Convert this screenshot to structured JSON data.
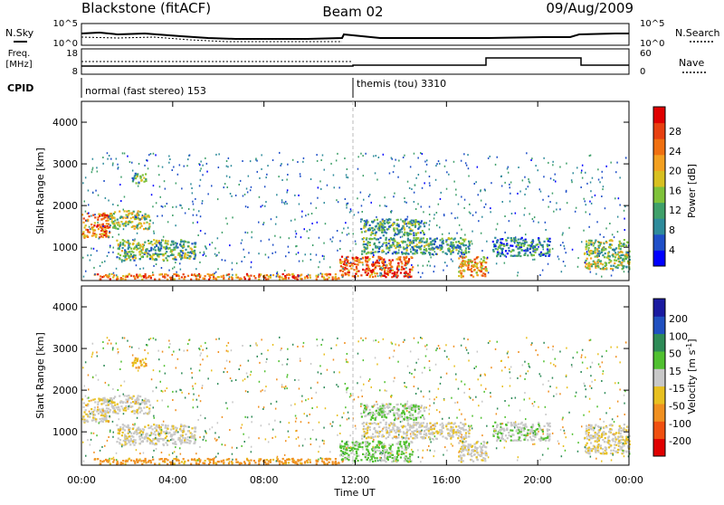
{
  "header": {
    "station": "Blackstone (fitACF)",
    "beam": "Beam 02",
    "date": "09/Aug/2009"
  },
  "noise_panel": {
    "left_label": "N.Sky",
    "right_label": "N.Search",
    "left_ticks": [
      "10^5",
      "10^0"
    ],
    "right_ticks": [
      "10^5",
      "10^0"
    ]
  },
  "freq_panel": {
    "left_label_line1": "Freq.",
    "left_label_line2": "[MHz]",
    "right_label": "Nave",
    "left_ticks": [
      "18",
      "8"
    ],
    "right_ticks": [
      "60",
      "0"
    ]
  },
  "cpid": {
    "label": "CPID",
    "modes": [
      {
        "name": "normal (fast stereo) 153",
        "start_h": 0
      },
      {
        "name": "themis (tou) 3310",
        "start_h": 12
      }
    ]
  },
  "axes": {
    "xlabel": "Time UT",
    "x_ticks": [
      "00:00",
      "04:00",
      "08:00",
      "12:00",
      "16:00",
      "20:00",
      "00:00"
    ],
    "ylabel": "Slant Range [km]",
    "y_ticks": [
      "1000",
      "2000",
      "3000",
      "4000"
    ]
  },
  "power_scale": {
    "title": "Power [dB]",
    "labels": [
      "28",
      "24",
      "20",
      "16",
      "12",
      "8",
      "4"
    ],
    "colors": [
      "#0000ff",
      "#1f4fc8",
      "#2e8b9b",
      "#3fa06a",
      "#7fc23a",
      "#d8c020",
      "#f3a020",
      "#f07010",
      "#e84010",
      "#e00000"
    ]
  },
  "velocity_scale": {
    "title": "Velocity [m s",
    "title_sup": "-1",
    "title_end": "]",
    "labels": [
      "200",
      "100",
      "50",
      "15",
      "-15",
      "-50",
      "-100",
      "-200"
    ],
    "colors": [
      "#1a1aa0",
      "#2050c0",
      "#2e8b57",
      "#50c030",
      "#c8c8c8",
      "#e8c020",
      "#f09020",
      "#f05010",
      "#e00000"
    ]
  },
  "chart_data": {
    "type": "heatmap",
    "title": "Blackstone (fitACF)",
    "xlabel": "Time UT",
    "ylabel": "Slant Range [km]",
    "xlim": [
      0,
      24
    ],
    "ylim": [
      200,
      4500
    ],
    "panels": [
      "Power [dB]",
      "Velocity [m s-1]"
    ],
    "power_range_db": [
      0,
      30
    ],
    "velocity_range": [
      -250,
      250
    ],
    "echo_regions": [
      {
        "t0": 0.0,
        "t1": 1.2,
        "r0": 1250,
        "r1": 1850,
        "power": 22,
        "velocity": -10
      },
      {
        "t0": 1.2,
        "t1": 3.0,
        "r0": 1450,
        "r1": 1900,
        "power": 14,
        "velocity": -5
      },
      {
        "t0": 2.2,
        "t1": 2.8,
        "r0": 2550,
        "r1": 2800,
        "power": 10,
        "velocity": -50
      },
      {
        "t0": 1.5,
        "t1": 5.0,
        "r0": 700,
        "r1": 1200,
        "power": 12,
        "velocity": -5
      },
      {
        "t0": 0.5,
        "t1": 11.5,
        "r0": 250,
        "r1": 380,
        "power": 22,
        "velocity": -60
      },
      {
        "t0": 11.3,
        "t1": 14.5,
        "r0": 300,
        "r1": 800,
        "power": 24,
        "velocity": 20
      },
      {
        "t0": 12.2,
        "t1": 17.0,
        "r0": 850,
        "r1": 1250,
        "power": 10,
        "velocity": -5
      },
      {
        "t0": 12.2,
        "t1": 15.0,
        "r0": 1300,
        "r1": 1700,
        "power": 11,
        "velocity": 15
      },
      {
        "t0": 16.5,
        "t1": 17.8,
        "r0": 300,
        "r1": 800,
        "power": 20,
        "velocity": -5
      },
      {
        "t0": 18.0,
        "t1": 20.5,
        "r0": 800,
        "r1": 1250,
        "power": 8,
        "velocity": 5
      },
      {
        "t0": 22.0,
        "t1": 24.0,
        "r0": 500,
        "r1": 1200,
        "power": 14,
        "velocity": -10
      }
    ]
  }
}
